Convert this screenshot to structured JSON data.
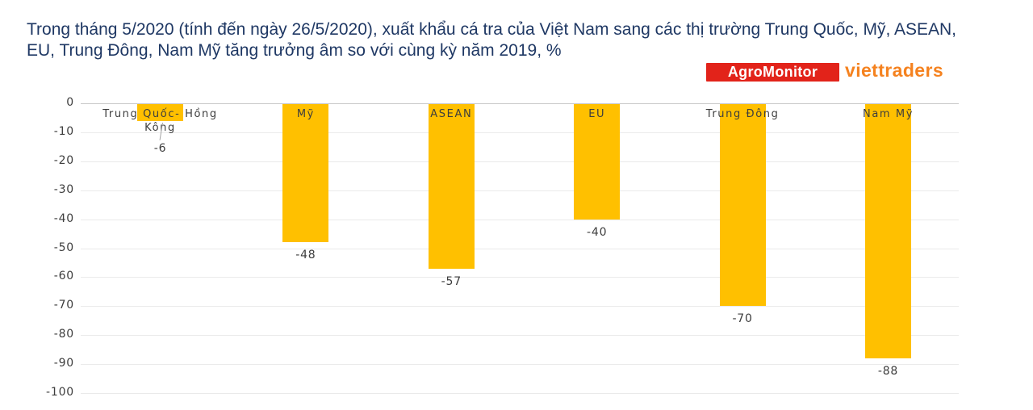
{
  "header": {
    "title_lines": [
      "Trong tháng 5/2020 (tính đến ngày 26/5/2020), xuất khẩu cá tra của Việt Nam sang các thị trường Trung Quốc, Mỹ, ASEAN,",
      "EU, Trung Đông, Nam Mỹ tăng trưởng âm so với cùng kỳ năm 2019, %"
    ],
    "title_color": "#1f3864"
  },
  "logos": {
    "agromonitor": "AgroMonitor",
    "agromonitor_bg": "#e2231a",
    "agromonitor_fg": "#ffffff",
    "viettraders": "viettraders",
    "viettraders_color": "#f5821f"
  },
  "chart_data": {
    "type": "bar",
    "title": "Trong tháng 5/2020 (tính đến ngày 26/5/2020), xuất khẩu cá tra của Việt Nam sang các thị trường Trung Quốc, Mỹ, ASEAN, EU, Trung Đông, Nam Mỹ tăng trưởng âm so với cùng kỳ năm 2019, %",
    "unit": "%",
    "categories": [
      "Trung Quốc- Hồng Kông",
      "Mỹ",
      "ASEAN",
      "EU",
      "Trung Đông",
      "Nam Mỹ"
    ],
    "values": [
      -6,
      -48,
      -57,
      -40,
      -70,
      -88
    ],
    "value_labels": [
      "-6",
      "-48",
      "-57",
      "-40",
      "-70",
      "-88"
    ],
    "y_ticks": [
      0,
      -10,
      -20,
      -30,
      -40,
      -50,
      -60,
      -70,
      -80,
      -90,
      -100
    ],
    "y_tick_labels": [
      "0",
      "-10",
      "-20",
      "-30",
      "-40",
      "-50",
      "-60",
      "-70",
      "-80",
      "-90",
      "-100"
    ],
    "ylim": [
      -100,
      0
    ],
    "grid": true,
    "legend": "none",
    "bar_color": "#ffc000",
    "gridline_color": "#eaeaea",
    "zero_line_color": "#c8c8c8",
    "label_color": "#3d3d3d"
  }
}
